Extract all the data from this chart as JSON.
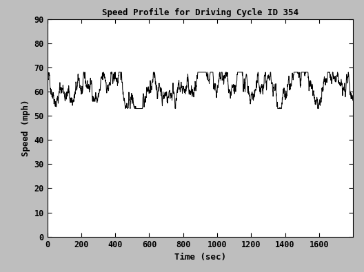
{
  "title": "Speed Profile for Driving Cycle ID 354",
  "xlabel": "Time (sec)",
  "ylabel": "Speed (mph)",
  "xlim": [
    0,
    1800
  ],
  "ylim": [
    0,
    90
  ],
  "xticks": [
    0,
    200,
    400,
    600,
    800,
    1000,
    1200,
    1400,
    1600
  ],
  "yticks": [
    0,
    10,
    20,
    30,
    40,
    50,
    60,
    70,
    80,
    90
  ],
  "line_color": "#000000",
  "background_color": "#bebebe",
  "plot_bg_color": "#ffffff",
  "seed": 42,
  "n_points": 1800,
  "mean_speed": 60,
  "min_speed": 53,
  "max_speed": 68,
  "title_fontsize": 9,
  "label_fontsize": 9,
  "tick_fontsize": 8.5
}
